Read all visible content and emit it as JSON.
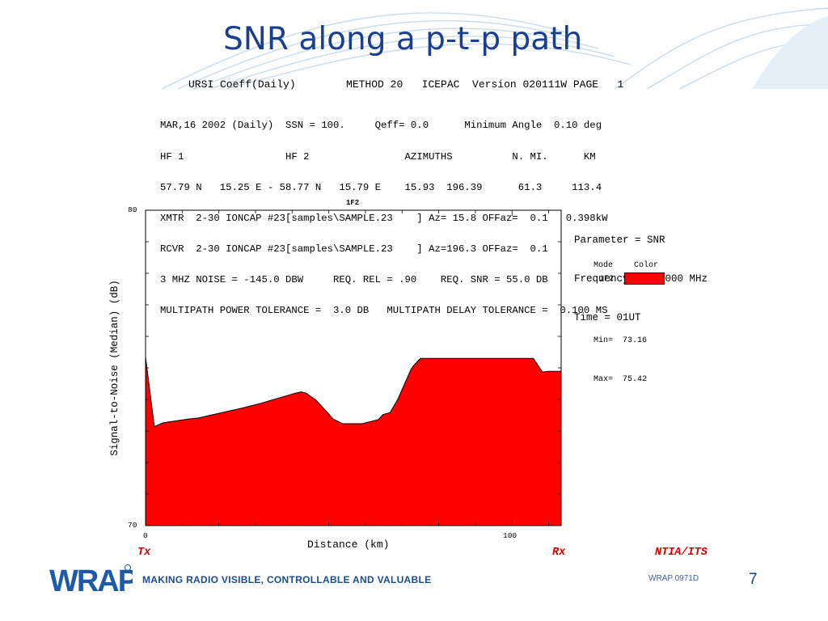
{
  "slide": {
    "title": "SNR along a p-t-p path",
    "doc_code": "WRAP 0971D",
    "page_number": "7",
    "logo_text": "WRAP",
    "tagline": "MAKING RADIO VISIBLE, CONTROLLABLE AND VALUABLE",
    "accent_color": "#1a3f8f"
  },
  "report": {
    "header_line": "URSI Coeff(Daily)        METHOD 20   ICEPAC  Version 020111W PAGE   1",
    "info_lines": [
      "MAR,16 2002 (Daily)  SSN = 100.     Qeff= 0.0      Minimum Angle  0.10 deg",
      "HF 1                 HF 2                AZIMUTHS          N. MI.      KM",
      "57.79 N   15.25 E - 58.77 N   15.79 E    15.93  196.39      61.3     113.4",
      "XMTR  2-30 IONCAP #23[samples\\SAMPLE.23    ] Az= 15.8 OFFaz=  0.1   0.398kW",
      "RCVR  2-30 IONCAP #23[samples\\SAMPLE.23    ] Az=196.3 OFFaz=  0.1",
      "3 MHZ NOISE = -145.0 DBW     REQ. REL = .90    REQ. SNR = 55.0 DB",
      "MULTIPATH POWER TOLERANCE =  3.0 DB   MULTIPATH DELAY TOLERANCE =  0.100 MS"
    ]
  },
  "legend": {
    "parameter_line": "Parameter = SNR",
    "frequency_line": "Frequency =  4.000 MHz",
    "time_line": "Time = 01UT",
    "mode_header": "Mode",
    "color_header": "Color",
    "mode_value": "1F2",
    "min_label": "Min=",
    "min_value": "73.16",
    "max_label": "Max=",
    "max_value": "75.42"
  },
  "labels": {
    "tx": "Tx",
    "rx": "Rx",
    "org": "NTIA/ITS"
  },
  "chart_data": {
    "type": "area",
    "title": "1F2",
    "xlabel": "Distance (km)",
    "ylabel": "Signal-to-Noise (Median) (dB)",
    "xlim": [
      0,
      113.4
    ],
    "ylim": [
      70,
      80
    ],
    "x_tick_labels": [
      "0",
      "100"
    ],
    "y_tick_labels": [
      "70",
      "80"
    ],
    "fill_color": "#ff0000",
    "series": [
      {
        "name": "1F2",
        "x": [
          0,
          2.4,
          4.8,
          11.8,
          14.3,
          26.5,
          31.5,
          40.9,
          42.5,
          43.8,
          46.5,
          49.2,
          51.2,
          53.8,
          59.1,
          63.5,
          64.8,
          66.7,
          68.8,
          72.5,
          73.2,
          75.0,
          79.9,
          83.3,
          105.8,
          108.3,
          109.8,
          113.4
        ],
        "y": [
          75.34,
          73.14,
          73.26,
          73.38,
          73.41,
          73.73,
          73.88,
          74.2,
          74.24,
          74.2,
          73.98,
          73.64,
          73.38,
          73.23,
          73.23,
          73.36,
          73.52,
          73.58,
          74.0,
          74.97,
          75.08,
          75.3,
          75.3,
          75.3,
          75.3,
          74.87,
          74.89,
          74.89
        ]
      }
    ]
  }
}
